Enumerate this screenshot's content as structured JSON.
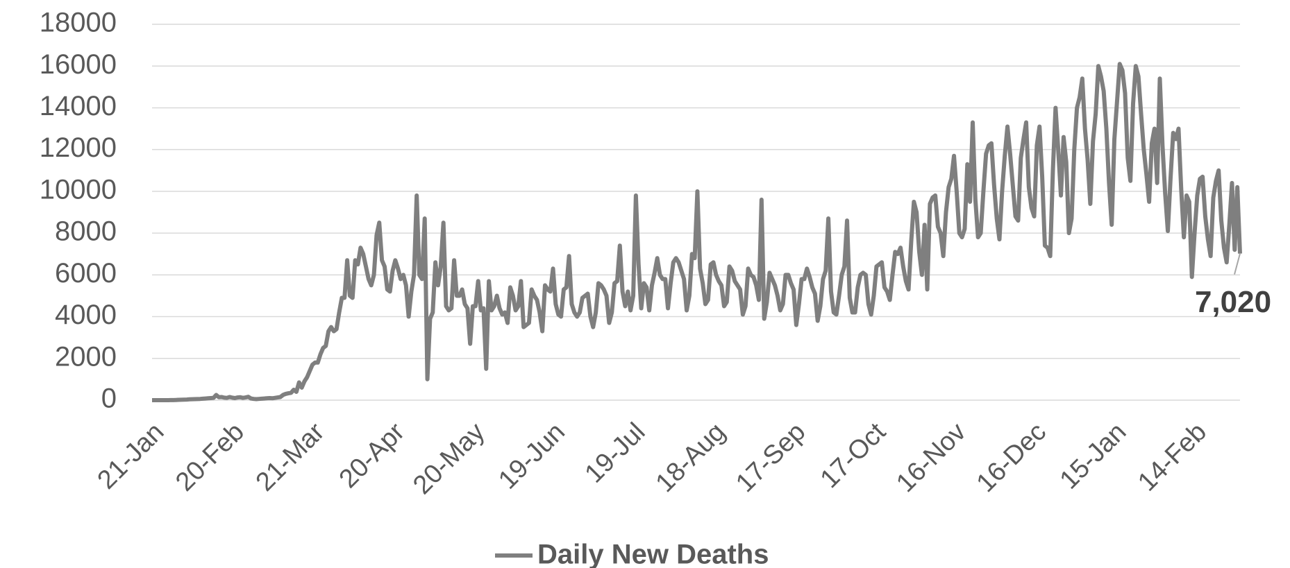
{
  "chart_data": {
    "type": "line",
    "categories": [
      "21-Jan",
      null,
      null,
      null,
      null,
      null,
      null,
      null,
      null,
      null,
      null,
      null,
      null,
      null,
      null,
      null,
      null,
      null,
      null,
      null,
      null,
      null,
      null,
      null,
      null,
      null,
      null,
      null,
      null,
      null,
      "20-Feb",
      null,
      null,
      null,
      null,
      null,
      null,
      null,
      null,
      null,
      null,
      null,
      null,
      null,
      null,
      null,
      null,
      null,
      null,
      null,
      null,
      null,
      null,
      null,
      null,
      null,
      null,
      null,
      null,
      null,
      "21-Mar",
      null,
      null,
      null,
      null,
      null,
      null,
      null,
      null,
      null,
      null,
      null,
      null,
      null,
      null,
      null,
      null,
      null,
      null,
      null,
      null,
      null,
      null,
      null,
      null,
      null,
      null,
      null,
      null,
      null,
      "20-Apr",
      null,
      null,
      null,
      null,
      null,
      null,
      null,
      null,
      null,
      null,
      null,
      null,
      null,
      null,
      null,
      null,
      null,
      null,
      null,
      null,
      null,
      null,
      null,
      null,
      null,
      null,
      null,
      null,
      null,
      "20-May",
      null,
      null,
      null,
      null,
      null,
      null,
      null,
      null,
      null,
      null,
      null,
      null,
      null,
      null,
      null,
      null,
      null,
      null,
      null,
      null,
      null,
      null,
      null,
      null,
      null,
      null,
      null,
      null,
      null,
      "19-Jun",
      null,
      null,
      null,
      null,
      null,
      null,
      null,
      null,
      null,
      null,
      null,
      null,
      null,
      null,
      null,
      null,
      null,
      null,
      null,
      null,
      null,
      null,
      null,
      null,
      null,
      null,
      null,
      null,
      null,
      "19-Jul",
      null,
      null,
      null,
      null,
      null,
      null,
      null,
      null,
      null,
      null,
      null,
      null,
      null,
      null,
      null,
      null,
      null,
      null,
      null,
      null,
      null,
      null,
      null,
      null,
      null,
      null,
      null,
      null,
      null,
      "18-Aug",
      null,
      null,
      null,
      null,
      null,
      null,
      null,
      null,
      null,
      null,
      null,
      null,
      null,
      null,
      null,
      null,
      null,
      null,
      null,
      null,
      null,
      null,
      null,
      null,
      null,
      null,
      null,
      null,
      null,
      "17-Sep",
      null,
      null,
      null,
      null,
      null,
      null,
      null,
      null,
      null,
      null,
      null,
      null,
      null,
      null,
      null,
      null,
      null,
      null,
      null,
      null,
      null,
      null,
      null,
      null,
      null,
      null,
      null,
      null,
      null,
      "17-Oct",
      null,
      null,
      null,
      null,
      null,
      null,
      null,
      null,
      null,
      null,
      null,
      null,
      null,
      null,
      null,
      null,
      null,
      null,
      null,
      null,
      null,
      null,
      null,
      null,
      null,
      null,
      null,
      null,
      null,
      "16-Nov",
      null,
      null,
      null,
      null,
      null,
      null,
      null,
      null,
      null,
      null,
      null,
      null,
      null,
      null,
      null,
      null,
      null,
      null,
      null,
      null,
      null,
      null,
      null,
      null,
      null,
      null,
      null,
      null,
      null,
      "16-Dec",
      null,
      null,
      null,
      null,
      null,
      null,
      null,
      null,
      null,
      null,
      null,
      null,
      null,
      null,
      null,
      null,
      null,
      null,
      null,
      null,
      null,
      null,
      null,
      null,
      null,
      null,
      null,
      null,
      null,
      "15-Jan",
      null,
      null,
      null,
      null,
      null,
      null,
      null,
      null,
      null,
      null,
      null,
      null,
      null,
      null,
      null,
      null,
      null,
      null,
      null,
      null,
      null,
      null,
      null,
      null,
      null,
      null,
      null,
      null,
      null,
      "14-Feb",
      null,
      null,
      null,
      null,
      null,
      null,
      null,
      null,
      null,
      null,
      null,
      null,
      null,
      null,
      null,
      null,
      null
    ],
    "series": [
      {
        "name": "Daily New Deaths",
        "color": "#7f7f7f",
        "values": [
          0,
          0,
          0,
          0,
          1,
          2,
          2,
          3,
          5,
          10,
          15,
          20,
          25,
          30,
          40,
          45,
          50,
          55,
          60,
          70,
          80,
          90,
          100,
          110,
          250,
          140,
          150,
          120,
          110,
          150,
          120,
          100,
          130,
          140,
          110,
          130,
          160,
          80,
          60,
          50,
          60,
          70,
          80,
          90,
          100,
          90,
          110,
          130,
          150,
          250,
          300,
          330,
          350,
          500,
          400,
          850,
          600,
          900,
          1100,
          1400,
          1700,
          1800,
          1800,
          2200,
          2500,
          2600,
          3300,
          3500,
          3300,
          3400,
          4200,
          4900,
          4900,
          6700,
          5000,
          4900,
          6700,
          6500,
          7300,
          7000,
          6400,
          5800,
          5500,
          6000,
          7900,
          8500,
          6700,
          6400,
          5300,
          5200,
          6200,
          6700,
          6300,
          5800,
          6000,
          5500,
          4000,
          5200,
          6000,
          9800,
          6000,
          5800,
          8700,
          1000,
          3900,
          4200,
          6600,
          5500,
          6400,
          8500,
          4500,
          4300,
          4400,
          6700,
          5000,
          5000,
          5300,
          4600,
          4400,
          2700,
          4500,
          4500,
          5700,
          4300,
          4400,
          1500,
          5700,
          4300,
          4500,
          5000,
          4400,
          4100,
          4200,
          3700,
          5400,
          5000,
          4300,
          4500,
          5700,
          3500,
          3600,
          3700,
          5300,
          5000,
          4800,
          4200,
          3300,
          5500,
          5300,
          5200,
          6300,
          4600,
          4100,
          4000,
          5300,
          5400,
          6900,
          4600,
          4200,
          4000,
          4200,
          4900,
          5000,
          5100,
          4000,
          3500,
          4200,
          5600,
          5500,
          5300,
          5000,
          3700,
          4200,
          5600,
          5700,
          7400,
          5200,
          4500,
          5200,
          4300,
          5000,
          9800,
          6500,
          4400,
          5600,
          5400,
          4300,
          5500,
          6100,
          6800,
          6000,
          5800,
          5800,
          4400,
          5600,
          6600,
          6800,
          6600,
          6200,
          5800,
          4300,
          5000,
          7000,
          6800,
          10000,
          6300,
          5600,
          4600,
          4800,
          6500,
          6600,
          6000,
          5700,
          5500,
          4500,
          4700,
          6400,
          6200,
          5700,
          5500,
          5300,
          4100,
          4500,
          6300,
          6000,
          5900,
          5500,
          4800,
          9600,
          3900,
          4700,
          6100,
          5800,
          5500,
          5000,
          4300,
          4600,
          6000,
          6000,
          5600,
          5300,
          3600,
          4600,
          5800,
          5800,
          6300,
          5900,
          5400,
          5100,
          3800,
          4500,
          5800,
          6200,
          8700,
          5200,
          4200,
          4100,
          5000,
          6000,
          6400,
          8600,
          4900,
          4200,
          4200,
          5400,
          6000,
          6100,
          6000,
          4600,
          4100,
          5000,
          6400,
          6500,
          6600,
          5400,
          5200,
          4800,
          6000,
          7100,
          7000,
          7300,
          6400,
          5700,
          5300,
          7600,
          9500,
          9000,
          7100,
          6000,
          8400,
          5300,
          9400,
          9700,
          9800,
          8300,
          8000,
          6900,
          9000,
          10200,
          10600,
          11700,
          10000,
          8000,
          7800,
          8200,
          11300,
          9500,
          13300,
          9600,
          7800,
          8000,
          10000,
          11800,
          12200,
          12300,
          10300,
          8700,
          7700,
          10000,
          11700,
          13100,
          11800,
          10300,
          8800,
          8600,
          11600,
          12500,
          13300,
          10200,
          9200,
          8800,
          12200,
          13100,
          10700,
          7400,
          7300,
          6900,
          11000,
          14000,
          12000,
          9800,
          12600,
          11400,
          8000,
          8700,
          12000,
          14000,
          14500,
          15400,
          13000,
          11500,
          9400,
          12400,
          13700,
          16000,
          15500,
          14800,
          13000,
          10400,
          8400,
          12500,
          14300,
          16100,
          15800,
          14700,
          11600,
          10500,
          14200,
          16000,
          15500,
          13700,
          12000,
          10800,
          9500,
          12300,
          13000,
          10400,
          15400,
          12200,
          9900,
          8100,
          10600,
          12800,
          12500,
          13000,
          10100,
          7800,
          9800,
          9500,
          5900,
          8000,
          9800,
          10600,
          10700,
          8800,
          7700,
          6900,
          9700,
          10500,
          11000,
          8600,
          7300,
          6600,
          8400,
          10400,
          7200,
          10200,
          7020
        ]
      }
    ],
    "end_label": "7,020",
    "ylim": [
      0,
      18000
    ],
    "yticks": [
      0,
      2000,
      4000,
      6000,
      8000,
      10000,
      12000,
      14000,
      16000,
      18000
    ],
    "grid": true,
    "legend": "bottom"
  }
}
